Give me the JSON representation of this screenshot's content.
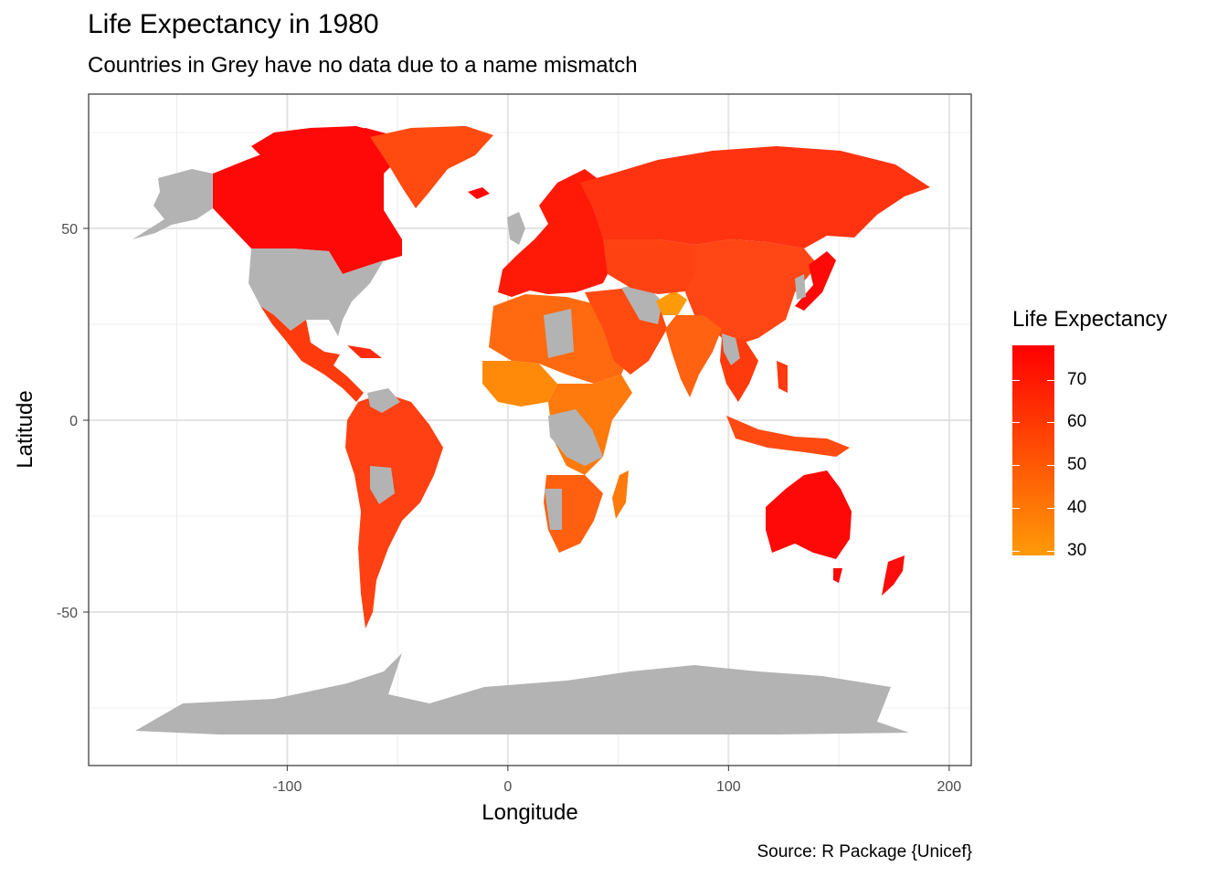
{
  "title": "Life Expectancy in 1980",
  "subtitle": "Countries in Grey have no data due to a name mismatch",
  "caption": "Source: R Package {Unicef}",
  "chart_data": {
    "type": "choropleth",
    "xlabel": "Longitude",
    "ylabel": "Latitude",
    "xlim": [
      -190,
      210
    ],
    "ylim": [
      -90,
      85
    ],
    "x_ticks": [
      -100,
      0,
      100,
      200
    ],
    "y_ticks": [
      -50,
      0,
      50
    ],
    "x_tick_labels": [
      "-100",
      "0",
      "100",
      "200"
    ],
    "y_tick_labels": [
      "-50",
      "0",
      "50"
    ],
    "grid": true,
    "legend": {
      "title": "Life Expectancy",
      "placement": "right",
      "ticks": [
        "70",
        "60",
        "50",
        "40",
        "30"
      ],
      "range": [
        29,
        78
      ],
      "color_low": "#ff9a08",
      "color_high": "#ff0000"
    },
    "no_data_color": "#b3b3b3",
    "regions": [
      {
        "name": "Canada",
        "value": 75
      },
      {
        "name": "Greenland",
        "value": 62
      },
      {
        "name": "Mexico",
        "value": 66
      },
      {
        "name": "South America",
        "value": 62
      },
      {
        "name": "Europe",
        "value": 73
      },
      {
        "name": "Russia",
        "value": 67
      },
      {
        "name": "China",
        "value": 64
      },
      {
        "name": "India",
        "value": 54
      },
      {
        "name": "Japan",
        "value": 76
      },
      {
        "name": "Australia",
        "value": 74
      },
      {
        "name": "New Zealand",
        "value": 73
      },
      {
        "name": "North Africa",
        "value": 56
      },
      {
        "name": "West Africa",
        "value": 45
      },
      {
        "name": "Southern Africa",
        "value": 52
      },
      {
        "name": "Middle East",
        "value": 60
      },
      {
        "name": "Southeast Asia",
        "value": 60
      },
      {
        "name": "USA",
        "value": null
      },
      {
        "name": "Alaska",
        "value": null
      },
      {
        "name": "Antarctica",
        "value": null
      }
    ]
  }
}
